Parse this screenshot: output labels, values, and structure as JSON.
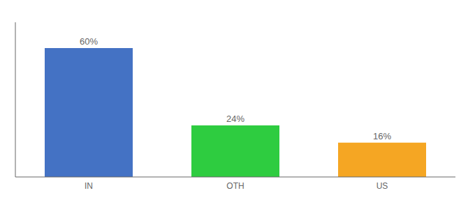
{
  "chart_data": {
    "type": "bar",
    "categories": [
      "IN",
      "OTH",
      "US"
    ],
    "values": [
      60,
      24,
      16
    ],
    "value_labels": [
      "60%",
      "24%",
      "16%"
    ],
    "colors": [
      "#4472c4",
      "#2ecc40",
      "#f5a623"
    ],
    "ylim": [
      0,
      72
    ],
    "data_labels": true,
    "tick_labels": "x",
    "grid": false
  }
}
